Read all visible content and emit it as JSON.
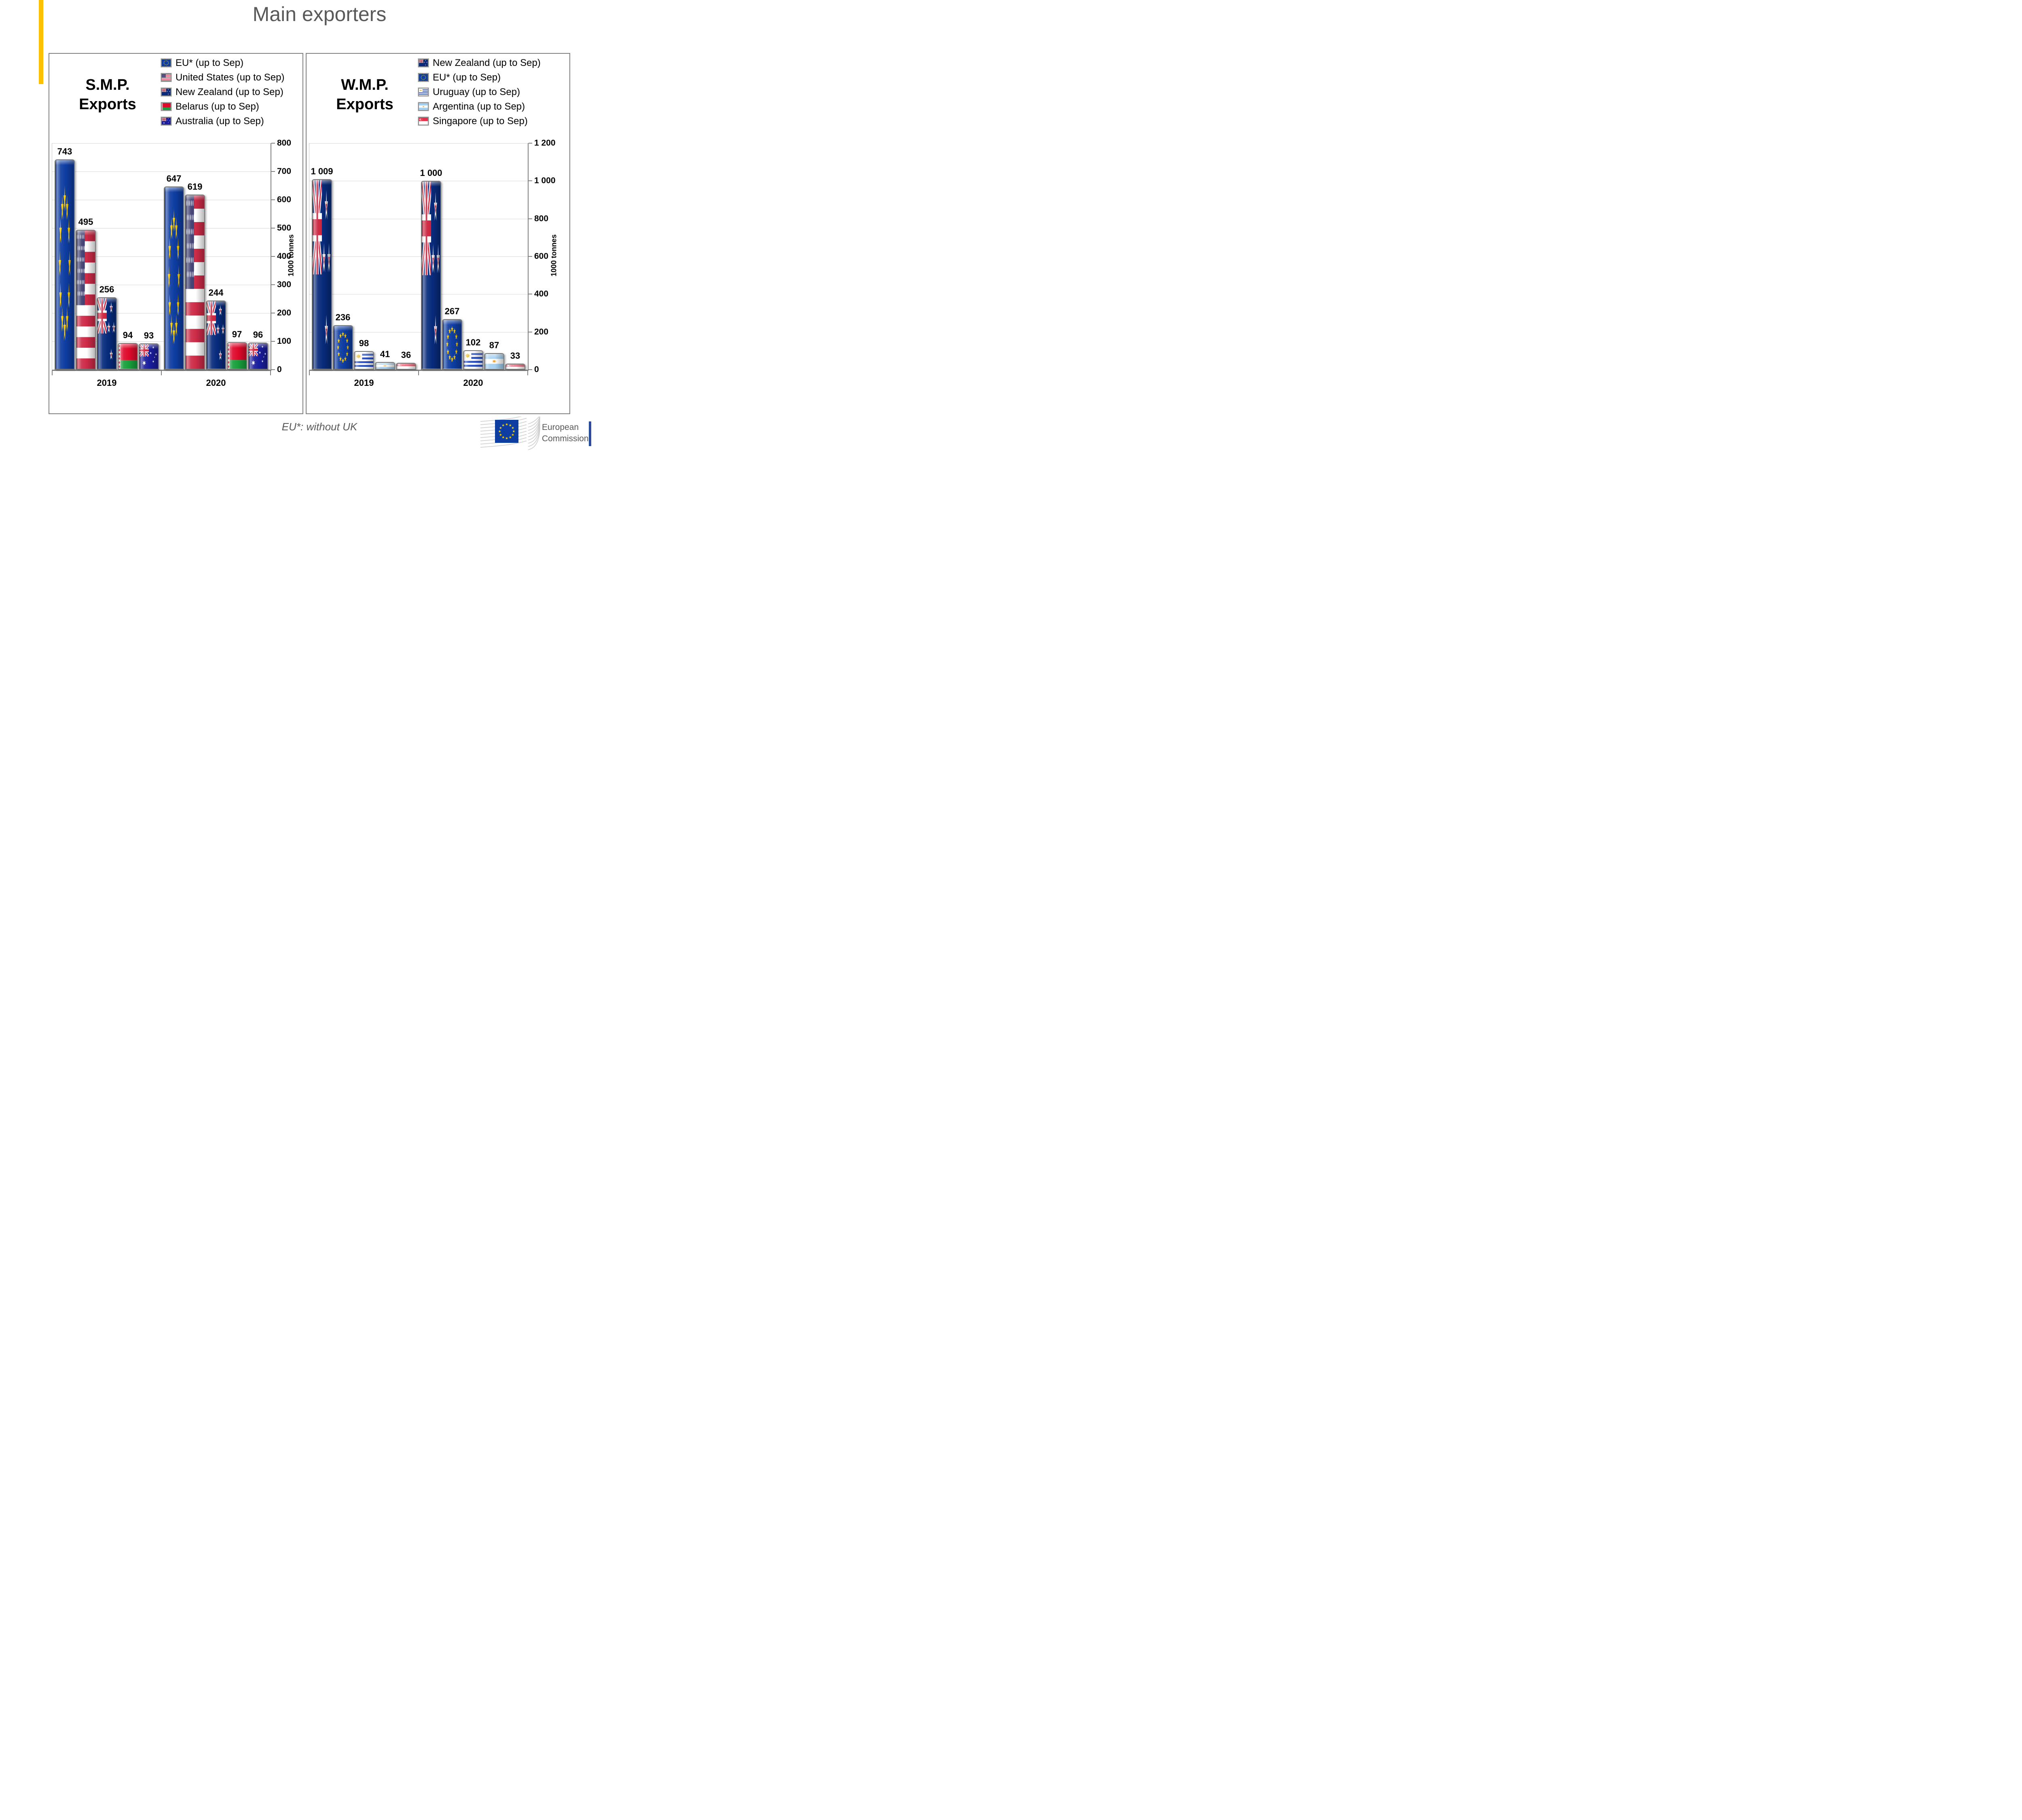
{
  "page": {
    "title": "Main exporters",
    "footer_note": "EU*: without UK"
  },
  "logo": {
    "line1": "European",
    "line2": "Commission"
  },
  "colors": {
    "accent_bar": "#FFC000",
    "title_text": "#595959",
    "panel_border": "#808080",
    "gridline": "#D7D7D7",
    "axis": "#808080",
    "eu_blue": "#0E3DA2",
    "eu_star_yellow": "#FFCC00"
  },
  "chart_data": [
    {
      "type": "bar",
      "title_lines": [
        "S.M.P.",
        "Exports"
      ],
      "ylabel": "1000 tonnes",
      "ylim": [
        0,
        800
      ],
      "ytick_step": 100,
      "grid": true,
      "legend_position": "top-right",
      "categories": [
        "2019",
        "2020"
      ],
      "series": [
        {
          "name": "EU* (up to Sep)",
          "flag": "eu",
          "values": [
            743,
            647
          ]
        },
        {
          "name": "United States (up to Sep)",
          "flag": "us",
          "values": [
            495,
            619
          ]
        },
        {
          "name": "New Zealand (up to Sep)",
          "flag": "nz",
          "values": [
            256,
            244
          ]
        },
        {
          "name": "Belarus (up to Sep)",
          "flag": "by",
          "values": [
            94,
            97
          ]
        },
        {
          "name": "Australia (up to Sep)",
          "flag": "au",
          "values": [
            93,
            96
          ]
        }
      ]
    },
    {
      "type": "bar",
      "title_lines": [
        "W.M.P.",
        "Exports"
      ],
      "ylabel": "1000 tonnes",
      "ylim": [
        0,
        1200
      ],
      "ytick_step": 200,
      "grid": true,
      "legend_position": "top-right",
      "categories": [
        "2019",
        "2020"
      ],
      "series": [
        {
          "name": "New Zealand (up to Sep)",
          "flag": "nz",
          "values": [
            1009,
            1000
          ]
        },
        {
          "name": "EU* (up to Sep)",
          "flag": "eu",
          "values": [
            236,
            267
          ]
        },
        {
          "name": "Uruguay (up to Sep)",
          "flag": "uy",
          "values": [
            98,
            102
          ]
        },
        {
          "name": "Argentina (up to Sep)",
          "flag": "ar",
          "values": [
            41,
            87
          ]
        },
        {
          "name": "Singapore (up to Sep)",
          "flag": "sg",
          "values": [
            36,
            33
          ]
        }
      ]
    }
  ]
}
